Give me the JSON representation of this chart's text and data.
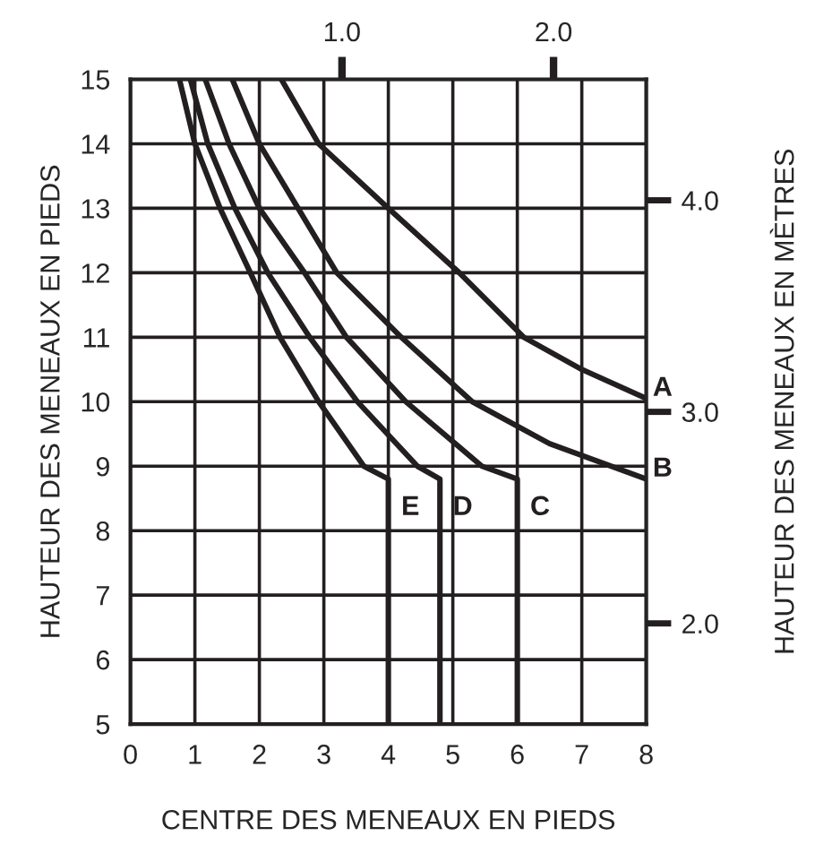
{
  "chart_data": {
    "type": "line",
    "xlabel": "CENTRE DES MENEAUX EN PIEDS",
    "ylabel": "HAUTEUR DES MENEAUX EN PIEDS",
    "y2label": "HAUTEUR DES MENEAUX EN MÈTRES",
    "xlim": [
      0,
      8
    ],
    "ylim": [
      5,
      15
    ],
    "xticks": [
      0,
      1,
      2,
      3,
      4,
      5,
      6,
      7,
      8
    ],
    "yticks": [
      5,
      6,
      7,
      8,
      9,
      10,
      11,
      12,
      13,
      14,
      15
    ],
    "x2lim": [
      0,
      2.4384
    ],
    "x2ticks": [
      {
        "value": 1,
        "label": "1.0"
      },
      {
        "value": 2,
        "label": "2.0"
      }
    ],
    "y2lim": [
      1.524,
      4.572
    ],
    "y2ticks": [
      {
        "value": 2,
        "label": "2.0"
      },
      {
        "value": 3,
        "label": "3.0"
      },
      {
        "value": 4,
        "label": "4.0"
      }
    ],
    "grid": true,
    "marker": "none",
    "line_style": "solid",
    "series": [
      {
        "name": "A",
        "color": "#231f20",
        "x": [
          2.34,
          2.92,
          4.0,
          5.1,
          6.1,
          7.0,
          8.0
        ],
        "values": [
          15,
          14,
          13,
          12,
          11,
          10.5,
          10.05
        ]
      },
      {
        "name": "B",
        "color": "#231f20",
        "x": [
          1.58,
          2.0,
          2.6,
          3.2,
          4.2,
          5.3,
          6.5,
          8.0
        ],
        "values": [
          15,
          14,
          13,
          12,
          11,
          10,
          9.35,
          8.8
        ]
      },
      {
        "name": "C",
        "color": "#231f20",
        "x": [
          1.16,
          1.53,
          2.0,
          2.7,
          3.35,
          4.27,
          5.45,
          6.0,
          6.0
        ],
        "values": [
          15,
          14,
          13,
          12,
          11,
          10,
          9,
          8.8,
          5
        ]
      },
      {
        "name": "D",
        "color": "#231f20",
        "x": [
          0.93,
          1.2,
          1.62,
          2.13,
          2.78,
          3.52,
          4.45,
          4.8,
          4.8
        ],
        "values": [
          15,
          14,
          13,
          12,
          11,
          10,
          9,
          8.8,
          5
        ]
      },
      {
        "name": "E",
        "color": "#231f20",
        "x": [
          0.76,
          1.0,
          1.39,
          1.86,
          2.32,
          2.92,
          3.62,
          4.0,
          4.0
        ],
        "values": [
          15,
          14,
          13,
          12,
          11,
          10,
          9,
          8.8,
          5
        ]
      }
    ]
  }
}
